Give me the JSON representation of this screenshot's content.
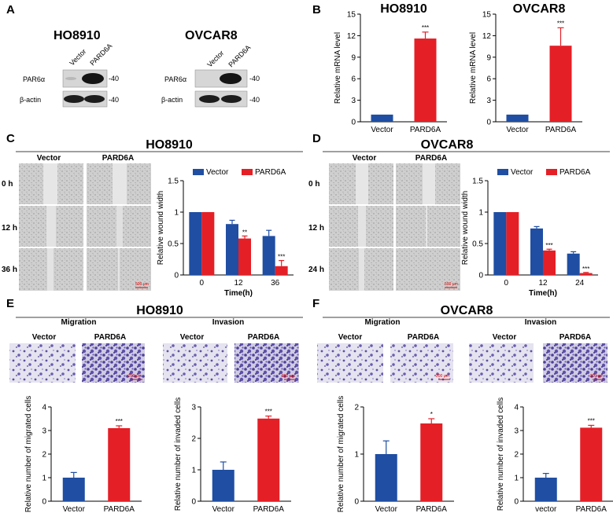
{
  "colors": {
    "vector": "#1f4ea3",
    "pard6a": "#e51f26",
    "blot_bg": "#d6d6d6",
    "band": "#151515"
  },
  "panels": {
    "A": "A",
    "B": "B",
    "C": "C",
    "D": "D",
    "E": "E",
    "F": "F"
  },
  "panelA": {
    "blots": [
      {
        "cell": "HO8910",
        "lanes": [
          "Vector",
          "PARD6A"
        ],
        "rows": [
          "PAR6α",
          "β-actin"
        ],
        "marker": "-40"
      },
      {
        "cell": "OVCAR8",
        "lanes": [
          "Vector",
          "PARD6A"
        ],
        "rows": [
          "PAR6α",
          "β-actin"
        ],
        "marker": "-40"
      }
    ]
  },
  "panelC": {
    "title": "HO8910",
    "cols": [
      "Vector",
      "PARD6A"
    ],
    "rows": [
      "0 h",
      "12 h",
      "36 h"
    ],
    "scale": "500 μm"
  },
  "panelD": {
    "title": "OVCAR8",
    "cols": [
      "Vector",
      "PARD6A"
    ],
    "rows": [
      "0 h",
      "12 h",
      "24 h"
    ],
    "scale": "500 μm"
  },
  "panelE": {
    "title": "HO8910",
    "groups": [
      "Migration",
      "Invasion"
    ],
    "labels": [
      "Vector",
      "PARD6A",
      "Vector",
      "PARD6A"
    ],
    "scale": "200 μm"
  },
  "panelF": {
    "title": "OVCAR8",
    "groups": [
      "Migration",
      "Invasion"
    ],
    "labels": [
      "Vector",
      "PARD6A",
      "Vector",
      "PARD6A"
    ],
    "scale": "200 μm"
  },
  "chart_data": [
    {
      "id": "B1",
      "type": "bar",
      "title": "HO8910",
      "categories": [
        "Vector",
        "PARD6A"
      ],
      "values": [
        1,
        11.6
      ],
      "errors": [
        0,
        0.9
      ],
      "sig": [
        "",
        "***"
      ],
      "ylabel": "Relative mRNA level",
      "ylim": [
        0,
        15
      ],
      "yticks": [
        0,
        3,
        6,
        9,
        12,
        15
      ]
    },
    {
      "id": "B2",
      "type": "bar",
      "title": "OVCAR8",
      "categories": [
        "Vector",
        "PARD6A"
      ],
      "values": [
        1,
        10.6
      ],
      "errors": [
        0,
        2.5
      ],
      "sig": [
        "",
        "***"
      ],
      "ylabel": "Relative mRNA level",
      "ylim": [
        0,
        15
      ],
      "yticks": [
        0,
        3,
        6,
        9,
        12,
        15
      ]
    },
    {
      "id": "C",
      "type": "bar",
      "categories": [
        "0",
        "12",
        "36"
      ],
      "series": [
        {
          "name": "Vector",
          "values": [
            1,
            0.81,
            0.62
          ],
          "errors": [
            0,
            0.06,
            0.09
          ]
        },
        {
          "name": "PARD6A",
          "values": [
            1,
            0.58,
            0.14
          ],
          "errors": [
            0,
            0.04,
            0.09
          ]
        }
      ],
      "sig": [
        "",
        "**",
        "***"
      ],
      "xlabel": "Time(h)",
      "ylabel": "Relative wound width",
      "ylim": [
        0,
        1.5
      ],
      "yticks": [
        0,
        0.5,
        1.0,
        1.5
      ],
      "legend": "top"
    },
    {
      "id": "D",
      "type": "bar",
      "categories": [
        "0",
        "12",
        "24"
      ],
      "series": [
        {
          "name": "Vector",
          "values": [
            1,
            0.74,
            0.34
          ],
          "errors": [
            0,
            0.03,
            0.03
          ]
        },
        {
          "name": "PARD6A",
          "values": [
            1,
            0.39,
            0.03
          ],
          "errors": [
            0,
            0.02,
            0.01
          ]
        }
      ],
      "sig": [
        "",
        "***",
        "***"
      ],
      "xlabel": "Time(h)",
      "ylabel": "Relative wound width",
      "ylim": [
        0,
        1.5
      ],
      "yticks": [
        0,
        0.5,
        1.0,
        1.5
      ],
      "legend": "top"
    },
    {
      "id": "E1",
      "type": "bar",
      "categories": [
        "Vector",
        "PARD6A"
      ],
      "values": [
        1,
        3.1
      ],
      "errors": [
        0.22,
        0.1
      ],
      "sig": [
        "",
        "***"
      ],
      "ylabel": "Relative number of migrated cells",
      "ylim": [
        0,
        4
      ],
      "yticks": [
        0,
        1,
        2,
        3,
        4
      ]
    },
    {
      "id": "E2",
      "type": "bar",
      "categories": [
        "Vector",
        "PARD6A"
      ],
      "values": [
        1,
        2.63
      ],
      "errors": [
        0.25,
        0.08
      ],
      "sig": [
        "",
        "***"
      ],
      "ylabel": "Relative number of invaded cells",
      "ylim": [
        0,
        3
      ],
      "yticks": [
        0,
        1,
        2,
        3
      ]
    },
    {
      "id": "F1",
      "type": "bar",
      "categories": [
        "Vector",
        "PARD6A"
      ],
      "values": [
        1,
        1.65
      ],
      "errors": [
        0.28,
        0.1
      ],
      "sig": [
        "",
        "*"
      ],
      "ylabel": "Relative number of migrated cells",
      "ylim": [
        0,
        2
      ],
      "yticks": [
        0,
        1,
        2
      ]
    },
    {
      "id": "F2",
      "type": "bar",
      "categories": [
        "vector",
        "PARD6A"
      ],
      "values": [
        1,
        3.12
      ],
      "errors": [
        0.18,
        0.1
      ],
      "sig": [
        "",
        "***"
      ],
      "ylabel": "Relative number of invaded cells",
      "ylim": [
        0,
        4
      ],
      "yticks": [
        0,
        1,
        2,
        3,
        4
      ]
    }
  ]
}
